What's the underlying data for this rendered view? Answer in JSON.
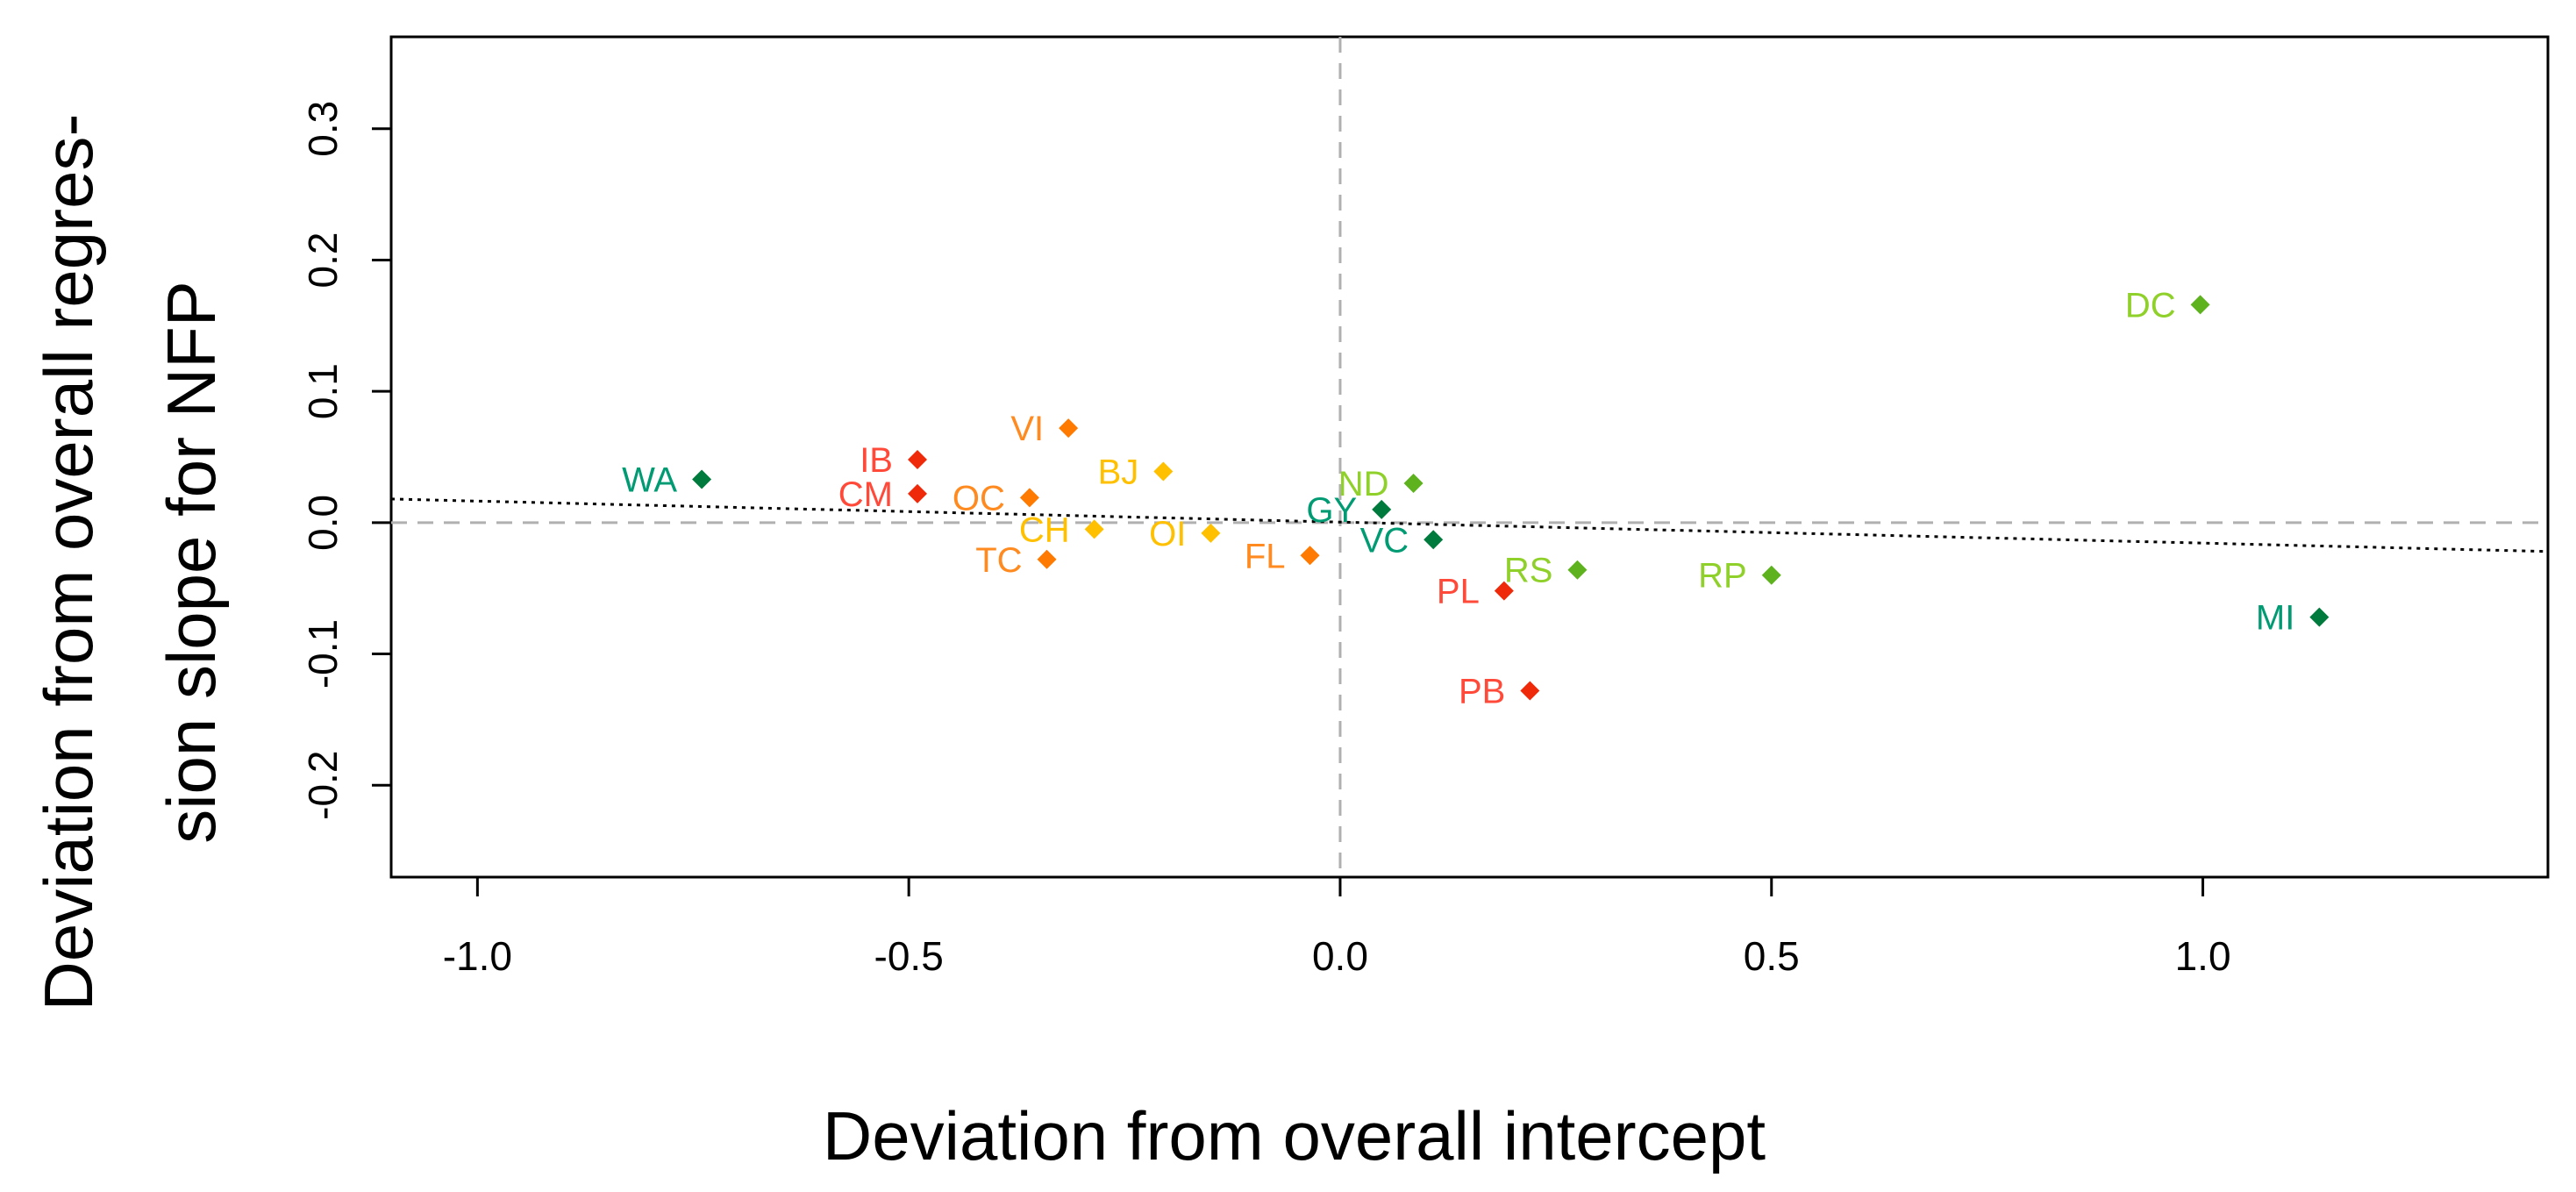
{
  "chart_data": {
    "type": "scatter",
    "xlabel": "Deviation from overall intercept",
    "ylabel_lines": [
      "Deviation from overall regres-",
      "sion slope for NFP"
    ],
    "xlim": [
      -1.1,
      1.4
    ],
    "ylim": [
      -0.27,
      0.37
    ],
    "x_ticks": [
      {
        "value": -1.0,
        "label": "-1.0"
      },
      {
        "value": -0.5,
        "label": "-0.5"
      },
      {
        "value": 0.0,
        "label": "0.0"
      },
      {
        "value": 0.5,
        "label": "0.5"
      },
      {
        "value": 1.0,
        "label": "1.0"
      }
    ],
    "y_ticks": [
      {
        "value": -0.2,
        "label": "-0.2"
      },
      {
        "value": -0.1,
        "label": "-0.1"
      },
      {
        "value": 0.0,
        "label": "0.0"
      },
      {
        "value": 0.1,
        "label": "0.1"
      },
      {
        "value": 0.2,
        "label": "0.2"
      },
      {
        "value": 0.3,
        "label": "0.3"
      }
    ],
    "reference_lines": {
      "x": 0,
      "y": 0,
      "style": "dashed",
      "color": "#b0b0b0"
    },
    "trend_line": {
      "style": "dotted",
      "color": "#000000",
      "x": [
        -1.1,
        1.4
      ],
      "y": [
        0.018,
        -0.022
      ]
    },
    "grid": false,
    "points": [
      {
        "label": "WA",
        "x": -0.74,
        "y": 0.033,
        "color": "#007a3d",
        "label_color": "#009a73"
      },
      {
        "label": "IB",
        "x": -0.49,
        "y": 0.048,
        "color": "#ee2a0a",
        "label_color": "#ff4a3a"
      },
      {
        "label": "CM",
        "x": -0.49,
        "y": 0.022,
        "color": "#ee2a0a",
        "label_color": "#ff4a3a"
      },
      {
        "label": "VI",
        "x": -0.315,
        "y": 0.072,
        "color": "#ff7a00",
        "label_color": "#ff8a20"
      },
      {
        "label": "OC",
        "x": -0.36,
        "y": 0.019,
        "color": "#ff7a00",
        "label_color": "#ff8a20"
      },
      {
        "label": "TC",
        "x": -0.34,
        "y": -0.028,
        "color": "#ff7a00",
        "label_color": "#ff8a20"
      },
      {
        "label": "CH",
        "x": -0.285,
        "y": -0.005,
        "color": "#ffc000",
        "label_color": "#ffc000"
      },
      {
        "label": "BJ",
        "x": -0.205,
        "y": 0.039,
        "color": "#ffc000",
        "label_color": "#ffc000"
      },
      {
        "label": "OI",
        "x": -0.15,
        "y": -0.008,
        "color": "#ffc000",
        "label_color": "#ffc000"
      },
      {
        "label": "FL",
        "x": -0.035,
        "y": -0.025,
        "color": "#ff7a00",
        "label_color": "#ff8a20"
      },
      {
        "label": "GY",
        "x": 0.048,
        "y": 0.01,
        "color": "#007a3d",
        "label_color": "#009a73"
      },
      {
        "label": "ND",
        "x": 0.085,
        "y": 0.03,
        "color": "#5db21e",
        "label_color": "#8fd02a"
      },
      {
        "label": "VC",
        "x": 0.108,
        "y": -0.013,
        "color": "#007a3d",
        "label_color": "#009a73"
      },
      {
        "label": "PL",
        "x": 0.19,
        "y": -0.052,
        "color": "#ee2a0a",
        "label_color": "#ff4a3a"
      },
      {
        "label": "PB",
        "x": 0.22,
        "y": -0.128,
        "color": "#ee2a0a",
        "label_color": "#ff4a3a"
      },
      {
        "label": "RS",
        "x": 0.275,
        "y": -0.036,
        "color": "#5db21e",
        "label_color": "#8fd02a"
      },
      {
        "label": "RP",
        "x": 0.5,
        "y": -0.04,
        "color": "#5db21e",
        "label_color": "#8fd02a"
      },
      {
        "label": "DC",
        "x": 0.997,
        "y": 0.166,
        "color": "#5db21e",
        "label_color": "#8fd02a"
      },
      {
        "label": "MI",
        "x": 1.135,
        "y": -0.072,
        "color": "#007a3d",
        "label_color": "#009a73"
      }
    ]
  }
}
